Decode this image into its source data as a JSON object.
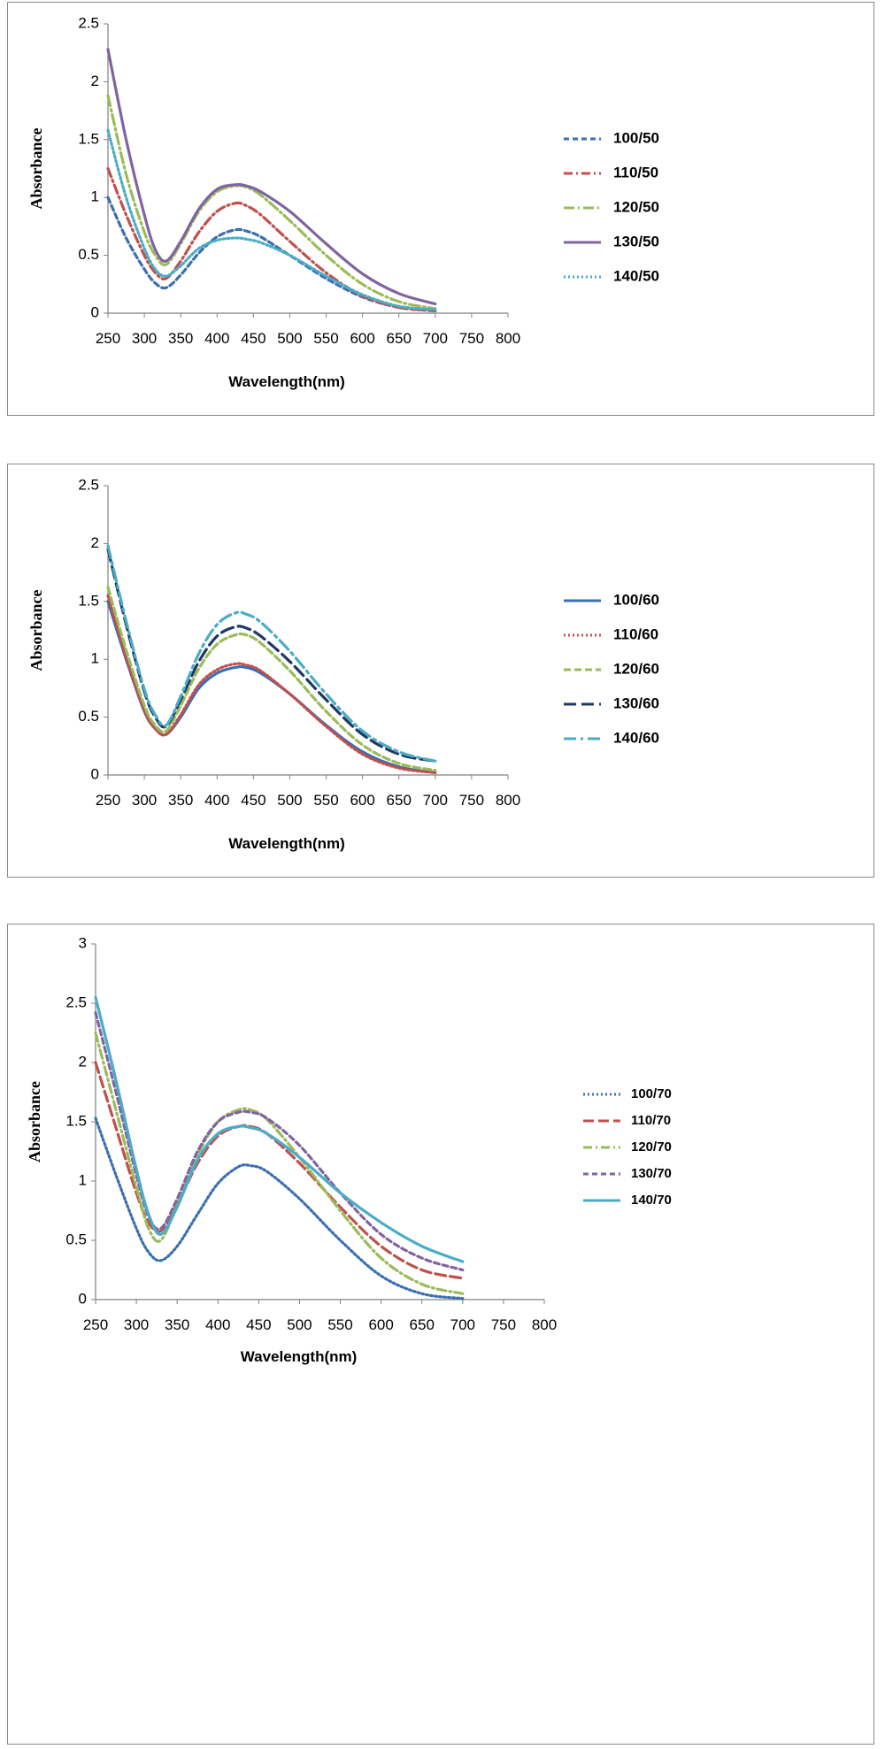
{
  "chart_data": [
    {
      "type": "line",
      "xlabel": "Wavelength(nm)",
      "ylabel": "Absorbance",
      "xlim": [
        250,
        800
      ],
      "ylim": [
        0,
        2.5
      ],
      "xticks": [
        250,
        300,
        350,
        400,
        450,
        500,
        550,
        600,
        650,
        700,
        750,
        800
      ],
      "yticks": [
        0,
        0.5,
        1,
        1.5,
        2,
        2.5
      ],
      "ytick_labels": [
        "0",
        "0.5",
        "1",
        "1.5",
        "2",
        "2.5"
      ],
      "legend": "right",
      "x": [
        250,
        275,
        300,
        315,
        330,
        350,
        375,
        400,
        425,
        440,
        460,
        500,
        550,
        600,
        650,
        700
      ],
      "series": [
        {
          "name": "100/50",
          "color": "#3a6fb0",
          "dash": "6,4",
          "values": [
            1.0,
            0.65,
            0.38,
            0.26,
            0.22,
            0.33,
            0.52,
            0.66,
            0.72,
            0.71,
            0.66,
            0.5,
            0.3,
            0.14,
            0.05,
            0.02
          ]
        },
        {
          "name": "110/50",
          "color": "#c0504d",
          "dash": "10,4,2,4",
          "values": [
            1.25,
            0.85,
            0.5,
            0.35,
            0.3,
            0.45,
            0.7,
            0.88,
            0.95,
            0.93,
            0.85,
            0.62,
            0.35,
            0.15,
            0.05,
            0.02
          ]
        },
        {
          "name": "120/50",
          "color": "#9bbb59",
          "dash": "12,4,2,4",
          "values": [
            1.88,
            1.2,
            0.7,
            0.5,
            0.42,
            0.6,
            0.88,
            1.05,
            1.1,
            1.09,
            1.02,
            0.8,
            0.5,
            0.25,
            0.1,
            0.04
          ]
        },
        {
          "name": "130/50",
          "color": "#8064a2",
          "dash": "",
          "values": [
            2.28,
            1.5,
            0.85,
            0.55,
            0.45,
            0.62,
            0.9,
            1.07,
            1.11,
            1.1,
            1.05,
            0.88,
            0.6,
            0.34,
            0.17,
            0.08
          ]
        },
        {
          "name": "140/50",
          "color": "#4bacc6",
          "dash": "2,3",
          "values": [
            1.58,
            1.0,
            0.56,
            0.38,
            0.32,
            0.41,
            0.56,
            0.63,
            0.65,
            0.64,
            0.61,
            0.5,
            0.32,
            0.16,
            0.06,
            0.03
          ]
        }
      ]
    },
    {
      "type": "line",
      "xlabel": "Wavelength(nm)",
      "ylabel": "Absorbance",
      "xlim": [
        250,
        800
      ],
      "ylim": [
        0,
        2.5
      ],
      "xticks": [
        250,
        300,
        350,
        400,
        450,
        500,
        550,
        600,
        650,
        700,
        750,
        800
      ],
      "yticks": [
        0,
        0.5,
        1,
        1.5,
        2,
        2.5
      ],
      "ytick_labels": [
        "0",
        "0.5",
        "1",
        "1.5",
        "2",
        "2.5"
      ],
      "legend": "right",
      "x": [
        250,
        275,
        300,
        315,
        330,
        350,
        375,
        400,
        425,
        440,
        460,
        500,
        550,
        600,
        650,
        700
      ],
      "series": [
        {
          "name": "100/60",
          "color": "#3a6fb0",
          "dash": "",
          "values": [
            1.5,
            1.0,
            0.55,
            0.4,
            0.35,
            0.5,
            0.75,
            0.88,
            0.93,
            0.93,
            0.88,
            0.7,
            0.43,
            0.2,
            0.07,
            0.02
          ]
        },
        {
          "name": "110/60",
          "color": "#c0504d",
          "dash": "2,3",
          "values": [
            1.55,
            1.02,
            0.56,
            0.4,
            0.35,
            0.52,
            0.78,
            0.91,
            0.96,
            0.95,
            0.9,
            0.7,
            0.42,
            0.18,
            0.06,
            0.02
          ]
        },
        {
          "name": "120/60",
          "color": "#9bbb59",
          "dash": "8,4",
          "values": [
            1.62,
            1.08,
            0.6,
            0.43,
            0.38,
            0.6,
            0.92,
            1.13,
            1.21,
            1.21,
            1.14,
            0.9,
            0.55,
            0.26,
            0.1,
            0.04
          ]
        },
        {
          "name": "130/60",
          "color": "#1f3864",
          "dash": "14,6",
          "values": [
            1.95,
            1.3,
            0.72,
            0.5,
            0.42,
            0.65,
            0.98,
            1.2,
            1.28,
            1.27,
            1.2,
            0.98,
            0.65,
            0.35,
            0.18,
            0.12
          ]
        },
        {
          "name": "140/60",
          "color": "#4bacc6",
          "dash": "14,5,3,5",
          "values": [
            1.98,
            1.33,
            0.74,
            0.52,
            0.43,
            0.68,
            1.05,
            1.3,
            1.4,
            1.39,
            1.32,
            1.07,
            0.7,
            0.38,
            0.2,
            0.12
          ]
        }
      ]
    },
    {
      "type": "line",
      "xlabel": "Wavelength(nm)",
      "ylabel": "Absorbance",
      "xlim": [
        250,
        800
      ],
      "ylim": [
        0,
        3
      ],
      "xticks": [
        250,
        300,
        350,
        400,
        450,
        500,
        550,
        600,
        650,
        700,
        750,
        800
      ],
      "yticks": [
        0,
        0.5,
        1,
        1.5,
        2,
        2.5,
        3
      ],
      "ytick_labels": [
        "0",
        "0.5",
        "1",
        "1.5",
        "2",
        "2.5",
        "3"
      ],
      "legend": "right",
      "x": [
        250,
        275,
        300,
        315,
        330,
        350,
        375,
        400,
        425,
        440,
        460,
        500,
        550,
        600,
        650,
        700
      ],
      "series": [
        {
          "name": "100/70",
          "color": "#3a6fb0",
          "dash": "2,3",
          "values": [
            1.53,
            1.05,
            0.6,
            0.4,
            0.33,
            0.45,
            0.72,
            0.98,
            1.12,
            1.13,
            1.08,
            0.85,
            0.5,
            0.2,
            0.05,
            0.01
          ]
        },
        {
          "name": "110/70",
          "color": "#c0504d",
          "dash": "12,5",
          "values": [
            2.0,
            1.45,
            0.9,
            0.65,
            0.58,
            0.8,
            1.15,
            1.38,
            1.46,
            1.46,
            1.4,
            1.15,
            0.78,
            0.45,
            0.25,
            0.18
          ]
        },
        {
          "name": "120/70",
          "color": "#9bbb59",
          "dash": "10,4,2,4",
          "values": [
            2.25,
            1.6,
            0.95,
            0.6,
            0.5,
            0.8,
            1.22,
            1.5,
            1.6,
            1.6,
            1.52,
            1.2,
            0.75,
            0.35,
            0.13,
            0.05
          ]
        },
        {
          "name": "130/70",
          "color": "#8064a2",
          "dash": "6,4",
          "values": [
            2.42,
            1.75,
            1.05,
            0.7,
            0.6,
            0.85,
            1.25,
            1.5,
            1.58,
            1.58,
            1.53,
            1.3,
            0.9,
            0.55,
            0.35,
            0.25
          ]
        },
        {
          "name": "140/70",
          "color": "#4bacc6",
          "dash": "",
          "values": [
            2.55,
            1.85,
            1.1,
            0.72,
            0.55,
            0.78,
            1.18,
            1.4,
            1.46,
            1.45,
            1.4,
            1.2,
            0.9,
            0.65,
            0.45,
            0.32
          ]
        }
      ]
    }
  ]
}
